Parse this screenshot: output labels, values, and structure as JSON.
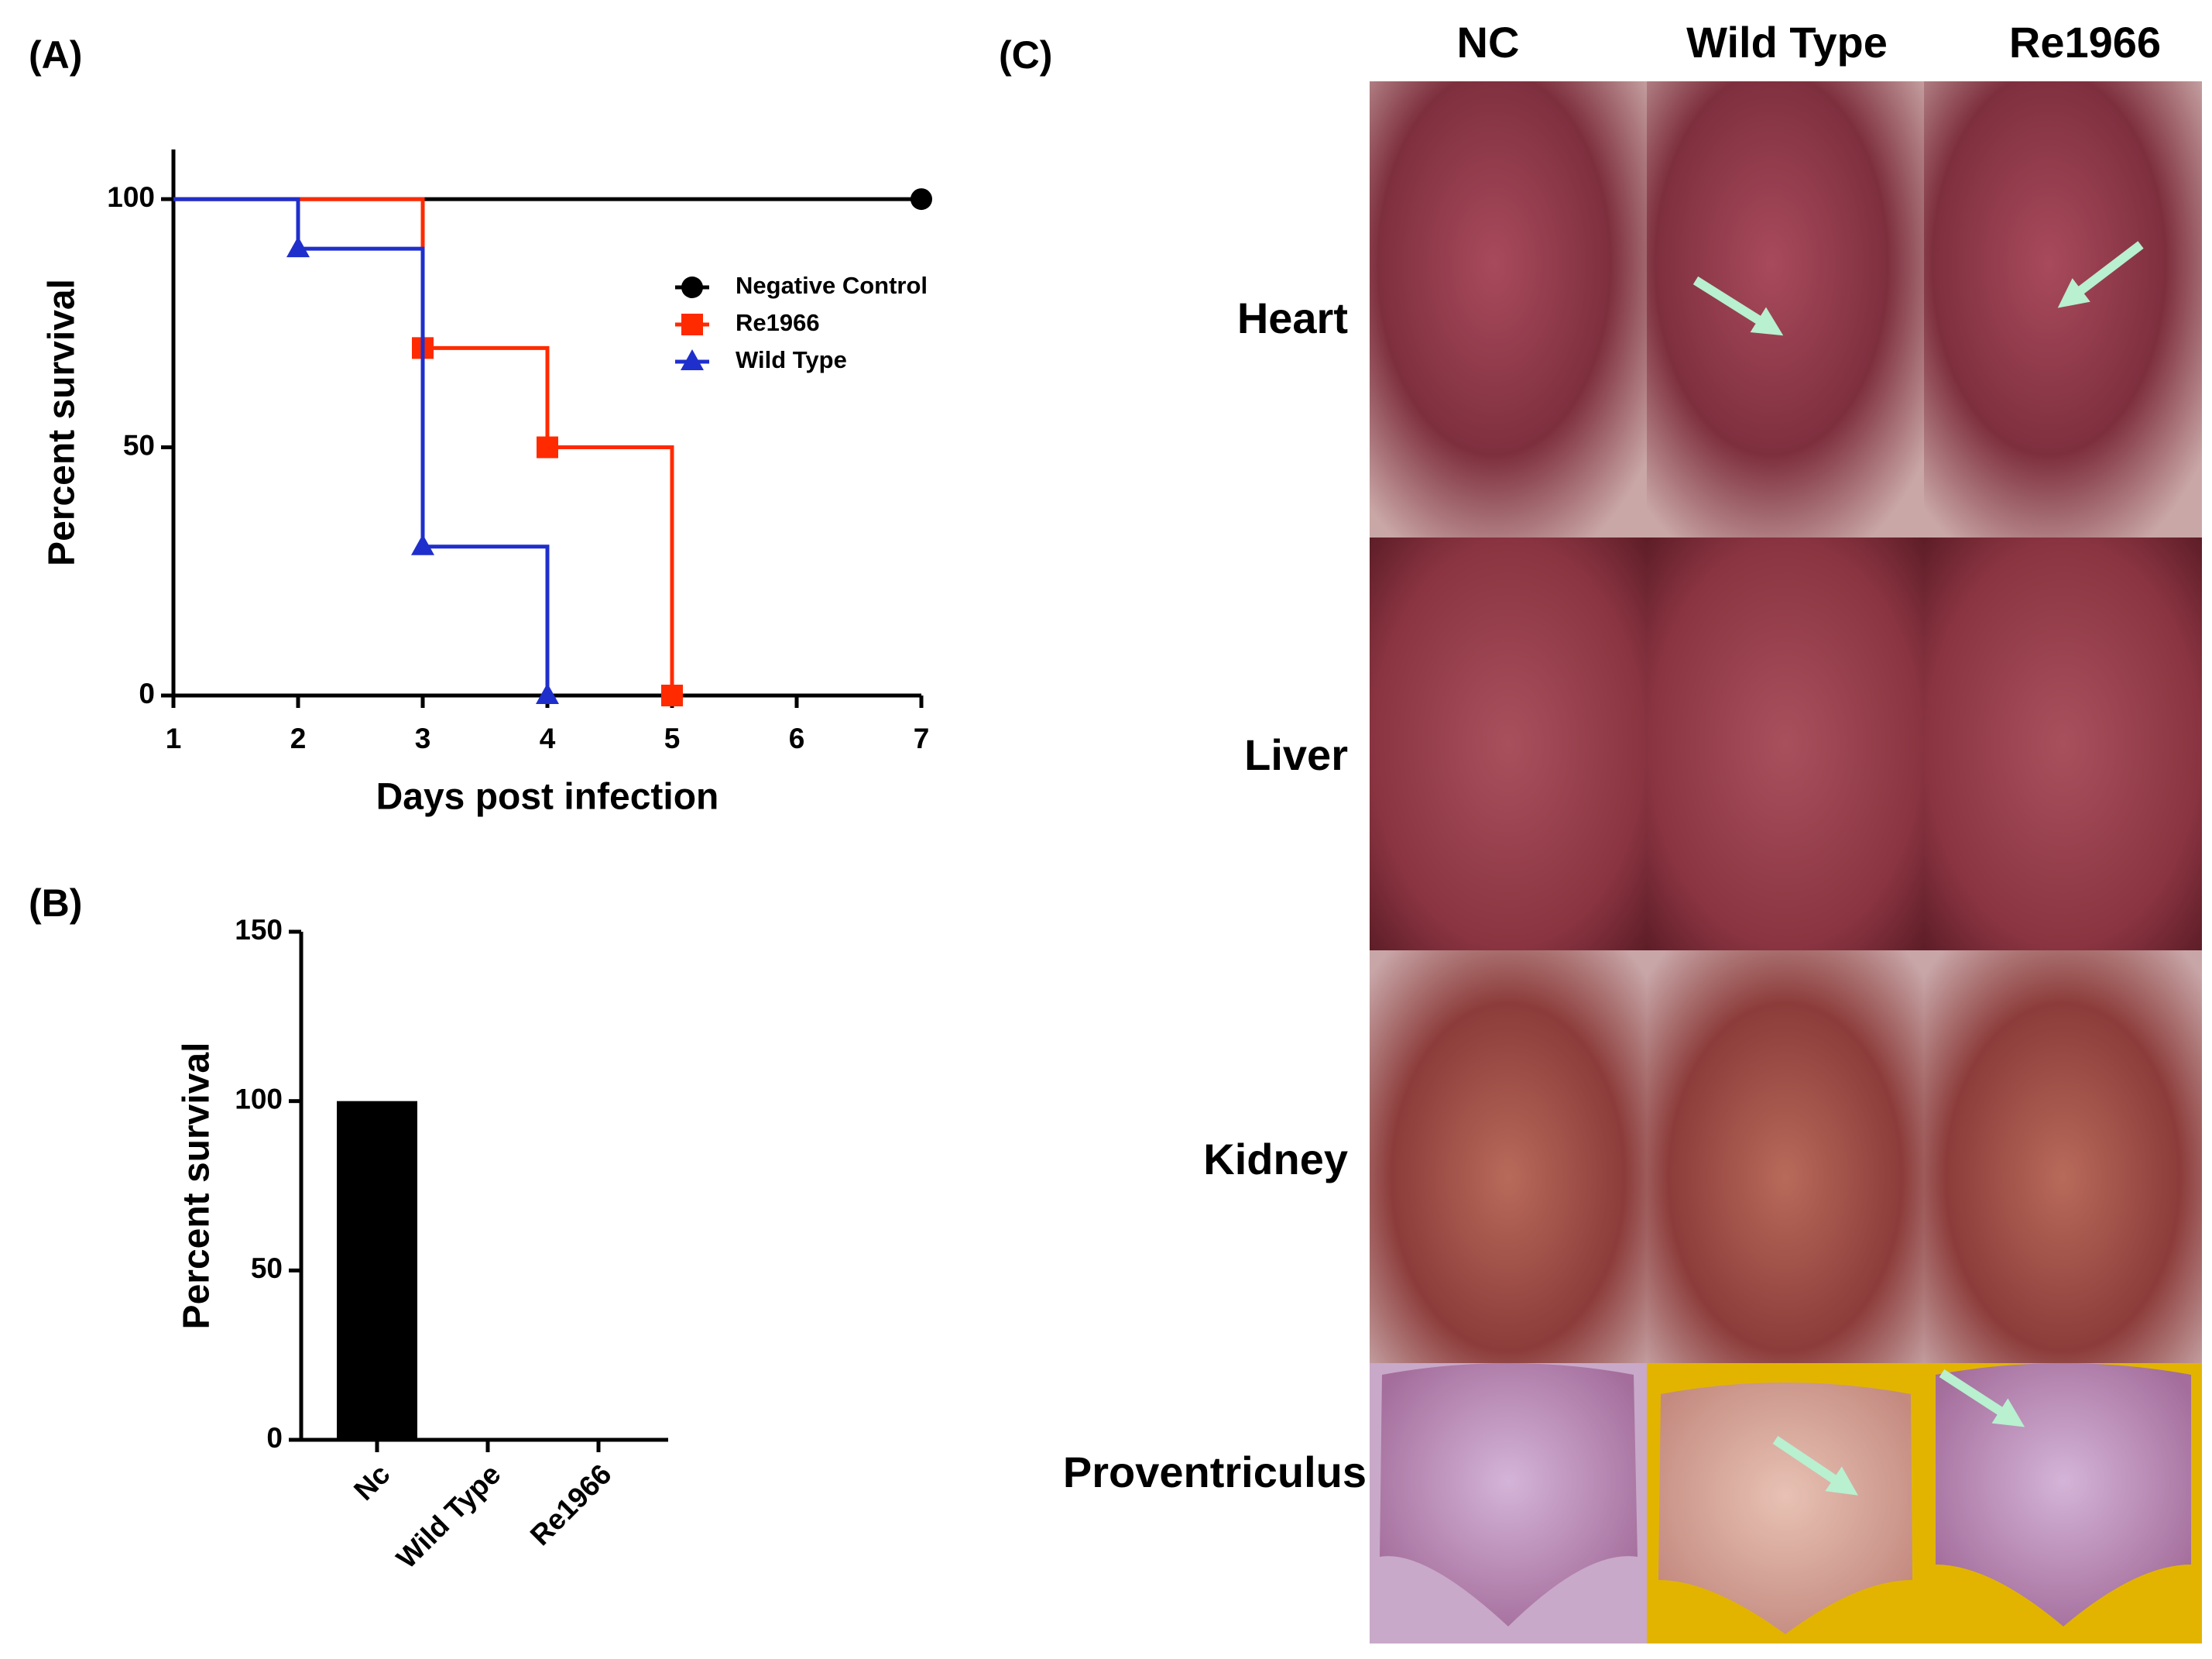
{
  "chart_data": [
    {
      "type": "line",
      "step": true,
      "panel_label": "(A)",
      "x_label": "Days post infection",
      "y_label": "Percent survival",
      "xlim": [
        1,
        7
      ],
      "xticks": [
        1,
        2,
        3,
        4,
        5,
        6,
        7
      ],
      "ylim": [
        0,
        110
      ],
      "yticks": [
        0,
        50,
        100
      ],
      "grid": false,
      "legend": "upper right",
      "series": [
        {
          "name": "Negative Control",
          "color": "#000000",
          "marker": "circle",
          "x": [
            1,
            7
          ],
          "values": [
            100,
            100
          ]
        },
        {
          "name": "Re1966",
          "color": "#ff2a00",
          "marker": "square",
          "x": [
            1,
            3,
            4,
            5
          ],
          "values": [
            100,
            70,
            50,
            0
          ]
        },
        {
          "name": "Wild Type",
          "color": "#1f2fcc",
          "marker": "triangle",
          "x": [
            1,
            2,
            3,
            4
          ],
          "values": [
            100,
            90,
            30,
            0
          ]
        }
      ]
    },
    {
      "type": "bar",
      "panel_label": "(B)",
      "y_label": "Percent survival",
      "categories": [
        "Nc",
        "Wild Type",
        "Re1966"
      ],
      "values": [
        100,
        0,
        0
      ],
      "color": "#000000",
      "ylim": [
        0,
        150
      ],
      "yticks": [
        0,
        50,
        100,
        150
      ],
      "grid": false
    }
  ],
  "panel_c": {
    "label": "(C)",
    "columns": [
      "NC",
      "Wild Type",
      "Re1966"
    ],
    "rows": [
      "Heart",
      "Liver",
      "Kidney",
      "Proventriculus"
    ]
  }
}
